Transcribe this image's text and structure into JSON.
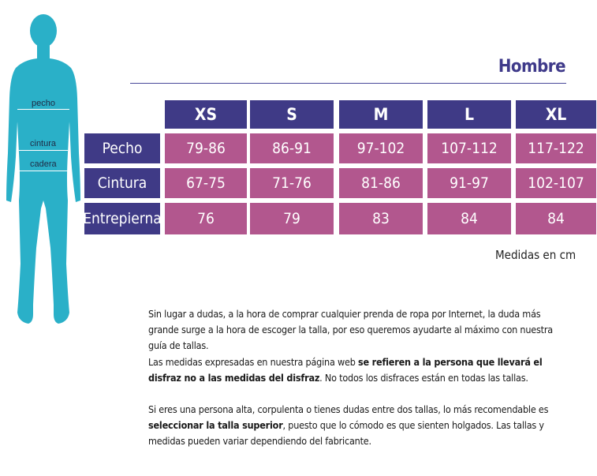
{
  "title": "Hombre",
  "figure": {
    "labels": {
      "chest": "pecho",
      "waist": "cintura",
      "hip": "cadera"
    },
    "color": "#2ab0c8"
  },
  "table": {
    "sizes": [
      "XS",
      "S",
      "M",
      "L",
      "XL"
    ],
    "rows": [
      {
        "label": "Pecho",
        "values": [
          "79-86",
          "86-91",
          "97-102",
          "107-112",
          "117-122"
        ]
      },
      {
        "label": "Cintura",
        "values": [
          "67-75",
          "71-76",
          "81-86",
          "91-97",
          "102-107"
        ]
      },
      {
        "label": "Entrepierna",
        "values": [
          "76",
          "79",
          "83",
          "84",
          "84"
        ]
      }
    ],
    "header_color": "#3f3a86",
    "value_color": "#b2578e"
  },
  "units": "Medidas en cm",
  "paragraphs": {
    "p1": "Sin lugar a dudas, a la hora de comprar cualquier prenda de ropa por Internet, la duda más grande surge a la hora de escoger la talla, por eso queremos ayudarte al máximo con nuestra guía de tallas.",
    "p2_a": "Las medidas expresadas en nuestra página web ",
    "p2_b": "se refieren a la persona que llevará el disfraz no a las medidas del disfraz",
    "p2_c": ". No todos los disfraces están en todas las tallas.",
    "p3_a": "Si eres una persona alta, corpulenta o tienes dudas entre dos tallas, lo más recomendable es ",
    "p3_b": "seleccionar la talla superior",
    "p3_c": ", puesto que lo cómodo es que sienten holgados. Las tallas y medidas pueden variar dependiendo del fabricante."
  }
}
